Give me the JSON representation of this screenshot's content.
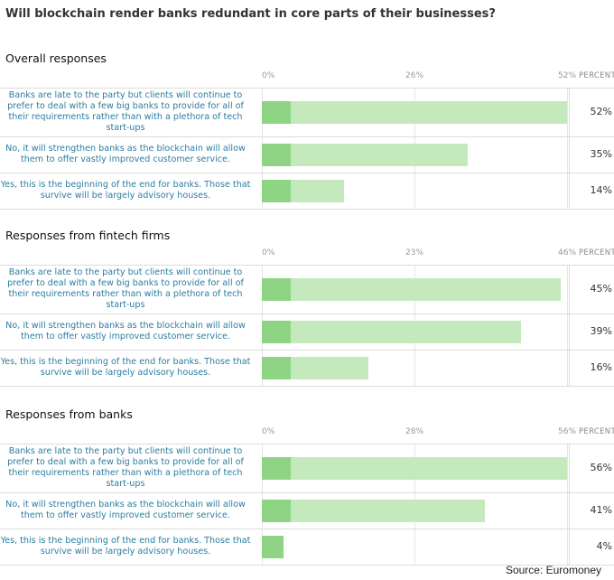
{
  "title": "Will blockchain render banks redundant in core parts of their businesses?",
  "source": "Source: Euromoney",
  "chart_data": [
    {
      "type": "bar",
      "orientation": "horizontal",
      "title": "Overall responses",
      "unit_label": "PERCENT",
      "ticks": [
        "0%",
        "26%",
        "52%"
      ],
      "xlim": [
        0,
        52
      ],
      "categories": [
        "Banks are late to the party but clients will continue to prefer to deal with a few big banks to provide for all of their requirements rather than with a plethora of tech start-ups",
        "No, it will strengthen banks as the blockchain will allow them to offer vastly improved customer service.",
        "Yes, this is the beginning of the end for banks. Those that survive will be largely advisory houses."
      ],
      "values": [
        52,
        35,
        14
      ],
      "value_labels": [
        "52%",
        "35%",
        "14%"
      ]
    },
    {
      "type": "bar",
      "orientation": "horizontal",
      "title": "Responses from fintech firms",
      "unit_label": "PERCENT",
      "ticks": [
        "0%",
        "23%",
        "46%"
      ],
      "xlim": [
        0,
        46
      ],
      "categories": [
        "Banks are late to the party but clients will continue to prefer to deal with a few big banks to provide for all of their requirements rather than with a plethora of tech start-ups",
        "No, it will strengthen banks as the blockchain will allow them to offer vastly improved customer service.",
        "Yes, this is the beginning of the end for banks. Those that survive will be largely advisory houses."
      ],
      "values": [
        45,
        39,
        16
      ],
      "value_labels": [
        "45%",
        "39%",
        "16%"
      ]
    },
    {
      "type": "bar",
      "orientation": "horizontal",
      "title": "Responses from banks",
      "unit_label": "PERCENT",
      "ticks": [
        "0%",
        "28%",
        "56%"
      ],
      "xlim": [
        0,
        56
      ],
      "categories": [
        "Banks are late to the party but clients will continue to prefer to deal with a few big banks to provide for all of their requirements rather than with a plethora of tech start-ups",
        "No, it will strengthen banks as the blockchain will allow them to offer vastly improved customer service.",
        "Yes, this is the beginning of the end for banks. Those that survive will be largely advisory houses."
      ],
      "values": [
        56,
        41,
        4
      ],
      "value_labels": [
        "56%",
        "41%",
        "4%"
      ]
    }
  ]
}
